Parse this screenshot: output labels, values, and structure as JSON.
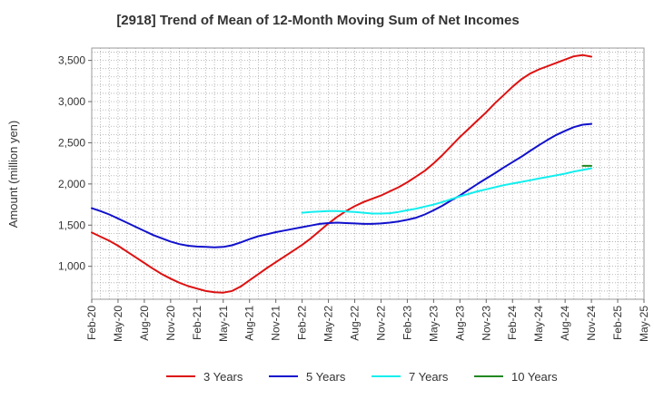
{
  "chart_data": {
    "type": "line",
    "title": "[2918]  Trend of Mean of 12-Month Moving Sum of Net Incomes",
    "ylabel": "Amount (million yen)",
    "xlabel": "",
    "ylim": [
      600,
      3650
    ],
    "yticks": [
      1000,
      1500,
      2000,
      2500,
      3000,
      3500
    ],
    "ytick_labels": [
      "1,000",
      "1,500",
      "2,000",
      "2,500",
      "3,000",
      "3,500"
    ],
    "x_tick_labels": [
      "Feb-20",
      "May-20",
      "Aug-20",
      "Nov-20",
      "Feb-21",
      "May-21",
      "Aug-21",
      "Nov-21",
      "Feb-22",
      "May-22",
      "Aug-22",
      "Nov-22",
      "Feb-23",
      "May-23",
      "Aug-23",
      "Nov-23",
      "Feb-24",
      "May-24",
      "Aug-24",
      "Nov-24",
      "Feb-25",
      "May-25"
    ],
    "grid": true,
    "legend_position": "bottom",
    "series": [
      {
        "name": "3 Years",
        "color": "#dd1111",
        "points": [
          [
            "Feb-20",
            1410
          ],
          [
            "Mar-20",
            1360
          ],
          [
            "Apr-20",
            1310
          ],
          [
            "May-20",
            1250
          ],
          [
            "Jun-20",
            1180
          ],
          [
            "Jul-20",
            1110
          ],
          [
            "Aug-20",
            1040
          ],
          [
            "Sep-20",
            970
          ],
          [
            "Oct-20",
            905
          ],
          [
            "Nov-20",
            850
          ],
          [
            "Dec-20",
            800
          ],
          [
            "Jan-21",
            760
          ],
          [
            "Feb-21",
            730
          ],
          [
            "Mar-21",
            700
          ],
          [
            "Apr-21",
            685
          ],
          [
            "May-21",
            680
          ],
          [
            "Jun-21",
            700
          ],
          [
            "Jul-21",
            755
          ],
          [
            "Aug-21",
            830
          ],
          [
            "Sep-21",
            905
          ],
          [
            "Oct-21",
            980
          ],
          [
            "Nov-21",
            1050
          ],
          [
            "Dec-21",
            1120
          ],
          [
            "Jan-22",
            1190
          ],
          [
            "Feb-22",
            1260
          ],
          [
            "Mar-22",
            1340
          ],
          [
            "Apr-22",
            1430
          ],
          [
            "May-22",
            1520
          ],
          [
            "Jun-22",
            1600
          ],
          [
            "Jul-22",
            1670
          ],
          [
            "Aug-22",
            1730
          ],
          [
            "Sep-22",
            1780
          ],
          [
            "Oct-22",
            1820
          ],
          [
            "Nov-22",
            1860
          ],
          [
            "Dec-22",
            1910
          ],
          [
            "Jan-23",
            1960
          ],
          [
            "Feb-23",
            2020
          ],
          [
            "Mar-23",
            2090
          ],
          [
            "Apr-23",
            2160
          ],
          [
            "May-23",
            2250
          ],
          [
            "Jun-23",
            2350
          ],
          [
            "Jul-23",
            2460
          ],
          [
            "Aug-23",
            2570
          ],
          [
            "Sep-23",
            2670
          ],
          [
            "Oct-23",
            2770
          ],
          [
            "Nov-23",
            2870
          ],
          [
            "Dec-23",
            2980
          ],
          [
            "Jan-24",
            3080
          ],
          [
            "Feb-24",
            3180
          ],
          [
            "Mar-24",
            3270
          ],
          [
            "Apr-24",
            3340
          ],
          [
            "May-24",
            3390
          ],
          [
            "Jun-24",
            3430
          ],
          [
            "Jul-24",
            3470
          ],
          [
            "Aug-24",
            3510
          ],
          [
            "Sep-24",
            3550
          ],
          [
            "Oct-24",
            3565
          ],
          [
            "Nov-24",
            3545
          ]
        ]
      },
      {
        "name": "5 Years",
        "color": "#1111cc",
        "points": [
          [
            "Feb-20",
            1705
          ],
          [
            "Mar-20",
            1670
          ],
          [
            "Apr-20",
            1630
          ],
          [
            "May-20",
            1580
          ],
          [
            "Jun-20",
            1530
          ],
          [
            "Jul-20",
            1480
          ],
          [
            "Aug-20",
            1430
          ],
          [
            "Sep-20",
            1380
          ],
          [
            "Oct-20",
            1340
          ],
          [
            "Nov-20",
            1300
          ],
          [
            "Dec-20",
            1270
          ],
          [
            "Jan-21",
            1250
          ],
          [
            "Feb-21",
            1240
          ],
          [
            "Mar-21",
            1235
          ],
          [
            "Apr-21",
            1230
          ],
          [
            "May-21",
            1235
          ],
          [
            "Jun-21",
            1255
          ],
          [
            "Jul-21",
            1290
          ],
          [
            "Aug-21",
            1330
          ],
          [
            "Sep-21",
            1365
          ],
          [
            "Oct-21",
            1390
          ],
          [
            "Nov-21",
            1415
          ],
          [
            "Dec-21",
            1435
          ],
          [
            "Jan-22",
            1455
          ],
          [
            "Feb-22",
            1475
          ],
          [
            "Mar-22",
            1495
          ],
          [
            "Apr-22",
            1515
          ],
          [
            "May-22",
            1525
          ],
          [
            "Jun-22",
            1530
          ],
          [
            "Jul-22",
            1525
          ],
          [
            "Aug-22",
            1520
          ],
          [
            "Sep-22",
            1515
          ],
          [
            "Oct-22",
            1515
          ],
          [
            "Nov-22",
            1520
          ],
          [
            "Dec-22",
            1530
          ],
          [
            "Jan-23",
            1545
          ],
          [
            "Feb-23",
            1565
          ],
          [
            "Mar-23",
            1590
          ],
          [
            "Apr-23",
            1630
          ],
          [
            "May-23",
            1680
          ],
          [
            "Jun-23",
            1735
          ],
          [
            "Jul-23",
            1800
          ],
          [
            "Aug-23",
            1860
          ],
          [
            "Sep-23",
            1930
          ],
          [
            "Oct-23",
            2000
          ],
          [
            "Nov-23",
            2065
          ],
          [
            "Dec-23",
            2130
          ],
          [
            "Jan-24",
            2200
          ],
          [
            "Feb-24",
            2265
          ],
          [
            "Mar-24",
            2330
          ],
          [
            "Apr-24",
            2400
          ],
          [
            "May-24",
            2470
          ],
          [
            "Jun-24",
            2535
          ],
          [
            "Jul-24",
            2595
          ],
          [
            "Aug-24",
            2645
          ],
          [
            "Sep-24",
            2690
          ],
          [
            "Oct-24",
            2720
          ],
          [
            "Nov-24",
            2730
          ]
        ]
      },
      {
        "name": "7 Years",
        "color": "#11eeee",
        "points": [
          [
            "Feb-22",
            1650
          ],
          [
            "Mar-22",
            1660
          ],
          [
            "Apr-22",
            1665
          ],
          [
            "May-22",
            1670
          ],
          [
            "Jun-22",
            1670
          ],
          [
            "Jul-22",
            1665
          ],
          [
            "Aug-22",
            1660
          ],
          [
            "Sep-22",
            1650
          ],
          [
            "Oct-22",
            1640
          ],
          [
            "Nov-22",
            1640
          ],
          [
            "Dec-22",
            1645
          ],
          [
            "Jan-23",
            1660
          ],
          [
            "Feb-23",
            1680
          ],
          [
            "Mar-23",
            1700
          ],
          [
            "Apr-23",
            1725
          ],
          [
            "May-23",
            1750
          ],
          [
            "Jun-23",
            1780
          ],
          [
            "Jul-23",
            1815
          ],
          [
            "Aug-23",
            1850
          ],
          [
            "Sep-23",
            1880
          ],
          [
            "Oct-23",
            1910
          ],
          [
            "Nov-23",
            1935
          ],
          [
            "Dec-23",
            1960
          ],
          [
            "Jan-24",
            1985
          ],
          [
            "Feb-24",
            2005
          ],
          [
            "Mar-24",
            2025
          ],
          [
            "Apr-24",
            2045
          ],
          [
            "May-24",
            2065
          ],
          [
            "Jun-24",
            2085
          ],
          [
            "Jul-24",
            2105
          ],
          [
            "Aug-24",
            2125
          ],
          [
            "Sep-24",
            2150
          ],
          [
            "Oct-24",
            2170
          ],
          [
            "Nov-24",
            2190
          ]
        ]
      },
      {
        "name": "10 Years",
        "color": "#228822",
        "points": [
          [
            "Oct-24",
            2220
          ],
          [
            "Nov-24",
            2220
          ]
        ]
      }
    ]
  }
}
